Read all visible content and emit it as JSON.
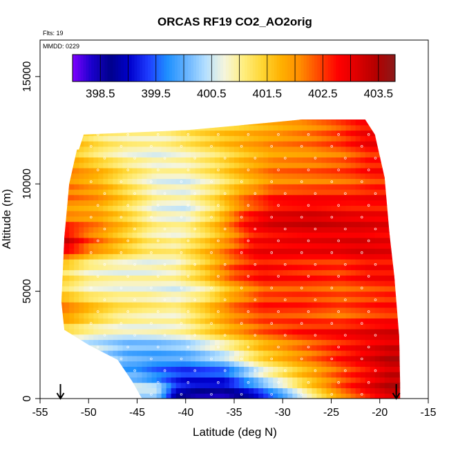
{
  "chart_data": {
    "type": "heatmap",
    "title": "ORCAS RF19 CO2_AO2orig",
    "subtitle_flights": "Flts: 19",
    "subtitle_date": "MMDD: 0229",
    "xlabel": "Latitude (deg N)",
    "ylabel": "Altitude (m)",
    "xlim": [
      -55,
      -15
    ],
    "ylim": [
      0,
      16700
    ],
    "x_ticks": [
      -55,
      -50,
      -45,
      -40,
      -35,
      -30,
      -25,
      -20,
      -15
    ],
    "y_ticks": [
      0,
      5000,
      10000,
      15000
    ],
    "colorbar": {
      "ticks": [
        398.5,
        399.5,
        400.5,
        401.5,
        402.5,
        403.5
      ],
      "range": [
        398.0,
        403.8
      ],
      "colors": [
        "#7f00ff",
        "#1a00cc",
        "#00008b",
        "#0000cd",
        "#1e3cff",
        "#1e90ff",
        "#66b3ff",
        "#b3dfff",
        "#f5f5dc",
        "#ffee80",
        "#ffd633",
        "#ffb000",
        "#ff8c00",
        "#ff4500",
        "#ff0000",
        "#dd0000",
        "#b30000",
        "#8b1a1a"
      ]
    },
    "profile_markers": [
      -52.9,
      -18.3
    ],
    "domain": {
      "top_altitude": [
        [
          -51.0,
          11600
        ],
        [
          -50.5,
          12300
        ],
        [
          -40.0,
          12500
        ],
        [
          -35.0,
          12700
        ],
        [
          -28.0,
          13000
        ],
        [
          -21.5,
          13000
        ],
        [
          -20.5,
          12300
        ],
        [
          -19.5,
          10300
        ],
        [
          -19.0,
          7700
        ],
        [
          -18.5,
          5700
        ],
        [
          -18.0,
          2900
        ],
        [
          -17.9,
          700
        ]
      ],
      "left_latitude": [
        [
          0,
          -44.5
        ],
        [
          800,
          -45.5
        ],
        [
          1800,
          -47.0
        ],
        [
          2500,
          -50.0
        ],
        [
          3200,
          -52.5
        ],
        [
          4500,
          -52.8
        ],
        [
          7500,
          -52.5
        ],
        [
          10000,
          -52.0
        ],
        [
          11600,
          -51.2
        ]
      ]
    },
    "levels": [
      {
        "alt": 400,
        "points": [
          [
            -43,
            400.5
          ],
          [
            -41,
            399.0
          ],
          [
            -39,
            398.7
          ],
          [
            -36,
            398.6
          ],
          [
            -33,
            399.2
          ],
          [
            -30,
            400.1
          ],
          [
            -27,
            401.2
          ],
          [
            -24,
            402.2
          ],
          [
            -21,
            402.9
          ],
          [
            -19,
            403.3
          ]
        ]
      },
      {
        "alt": 1000,
        "points": [
          [
            -45,
            400.0
          ],
          [
            -43,
            399.6
          ],
          [
            -40,
            399.2
          ],
          [
            -36,
            399.3
          ],
          [
            -32,
            400.6
          ],
          [
            -28,
            401.6
          ],
          [
            -24,
            402.4
          ],
          [
            -21,
            402.9
          ],
          [
            -19,
            403.3
          ]
        ]
      },
      {
        "alt": 2000,
        "points": [
          [
            -49,
            400.4
          ],
          [
            -46,
            399.9
          ],
          [
            -43,
            399.8
          ],
          [
            -40,
            399.9
          ],
          [
            -36,
            400.4
          ],
          [
            -32,
            401.4
          ],
          [
            -28,
            402.0
          ],
          [
            -24,
            402.6
          ],
          [
            -21,
            403.0
          ],
          [
            -19,
            403.3
          ]
        ]
      },
      {
        "alt": 3000,
        "points": [
          [
            -52,
            400.9
          ],
          [
            -49,
            400.6
          ],
          [
            -46,
            400.5
          ],
          [
            -43,
            400.6
          ],
          [
            -40,
            400.8
          ],
          [
            -36,
            401.5
          ],
          [
            -32,
            402.2
          ],
          [
            -28,
            402.6
          ],
          [
            -24,
            402.8
          ],
          [
            -21,
            403.0
          ],
          [
            -19,
            403.1
          ]
        ]
      },
      {
        "alt": 4000,
        "points": [
          [
            -52.5,
            402.3
          ],
          [
            -50,
            401.8
          ],
          [
            -47,
            401.3
          ],
          [
            -44,
            401.1
          ],
          [
            -41,
            401.0
          ],
          [
            -38,
            401.6
          ],
          [
            -35,
            402.3
          ],
          [
            -32,
            402.6
          ],
          [
            -28,
            402.5
          ],
          [
            -24,
            402.3
          ],
          [
            -21,
            402.5
          ],
          [
            -19,
            402.6
          ]
        ]
      },
      {
        "alt": 5000,
        "points": [
          [
            -52.5,
            401.4
          ],
          [
            -50,
            401.0
          ],
          [
            -47,
            400.9
          ],
          [
            -44,
            400.9
          ],
          [
            -41,
            400.7
          ],
          [
            -38,
            401.0
          ],
          [
            -35,
            401.8
          ],
          [
            -32,
            402.4
          ],
          [
            -28,
            402.5
          ],
          [
            -24,
            402.4
          ],
          [
            -21,
            402.5
          ],
          [
            -19,
            402.6
          ]
        ]
      },
      {
        "alt": 6000,
        "points": [
          [
            -52.5,
            401.2
          ],
          [
            -50,
            400.8
          ],
          [
            -47,
            400.7
          ],
          [
            -44,
            400.7
          ],
          [
            -41,
            400.9
          ],
          [
            -38,
            401.6
          ],
          [
            -35,
            402.5
          ],
          [
            -32,
            402.8
          ],
          [
            -28,
            402.6
          ],
          [
            -24,
            402.5
          ],
          [
            -21,
            402.8
          ],
          [
            -19,
            402.8
          ]
        ]
      },
      {
        "alt": 7300,
        "points": [
          [
            -52.5,
            403.4
          ],
          [
            -50,
            402.5
          ],
          [
            -47,
            401.8
          ],
          [
            -44,
            401.2
          ],
          [
            -41,
            401.0
          ],
          [
            -38,
            401.5
          ],
          [
            -35,
            402.2
          ],
          [
            -33,
            402.8
          ],
          [
            -30,
            402.9
          ],
          [
            -26,
            403.0
          ],
          [
            -22,
            403.1
          ],
          [
            -19.5,
            403.0
          ]
        ]
      },
      {
        "alt": 8500,
        "points": [
          [
            -52,
            402.0
          ],
          [
            -49,
            401.9
          ],
          [
            -46,
            401.4
          ],
          [
            -43,
            400.8
          ],
          [
            -40,
            400.7
          ],
          [
            -37,
            401.4
          ],
          [
            -34,
            402.6
          ],
          [
            -31,
            403.1
          ],
          [
            -27,
            403.2
          ],
          [
            -23,
            403.0
          ],
          [
            -20,
            402.9
          ]
        ]
      },
      {
        "alt": 10000,
        "points": [
          [
            -52,
            402.2
          ],
          [
            -49,
            401.9
          ],
          [
            -46,
            401.3
          ],
          [
            -43,
            400.8
          ],
          [
            -40,
            400.7
          ],
          [
            -37,
            401.1
          ],
          [
            -34,
            401.7
          ],
          [
            -31,
            402.2
          ],
          [
            -27,
            402.3
          ],
          [
            -23,
            402.4
          ],
          [
            -20.5,
            402.6
          ]
        ]
      },
      {
        "alt": 11500,
        "points": [
          [
            -51.5,
            401.6
          ],
          [
            -49,
            401.2
          ],
          [
            -46,
            400.9
          ],
          [
            -43,
            400.8
          ],
          [
            -40,
            401.0
          ],
          [
            -37,
            401.3
          ],
          [
            -34,
            401.7
          ],
          [
            -31,
            402.0
          ],
          [
            -27,
            402.1
          ],
          [
            -24,
            402.3
          ],
          [
            -21,
            402.7
          ]
        ]
      },
      {
        "alt": 12300,
        "points": [
          [
            -51,
            401.4
          ],
          [
            -48,
            401.0
          ],
          [
            -45,
            400.9
          ],
          [
            -42,
            400.9
          ],
          [
            -39,
            401.3
          ],
          [
            -36,
            401.6
          ],
          [
            -33,
            401.8
          ],
          [
            -30,
            402.0
          ],
          [
            -27,
            402.2
          ],
          [
            -24,
            402.5
          ],
          [
            -21.5,
            402.9
          ]
        ]
      },
      {
        "alt": 13000,
        "points": [
          [
            -35,
            401.6
          ],
          [
            -31,
            401.9
          ],
          [
            -28,
            402.1
          ],
          [
            -25,
            402.4
          ],
          [
            -22,
            402.8
          ]
        ]
      }
    ]
  }
}
